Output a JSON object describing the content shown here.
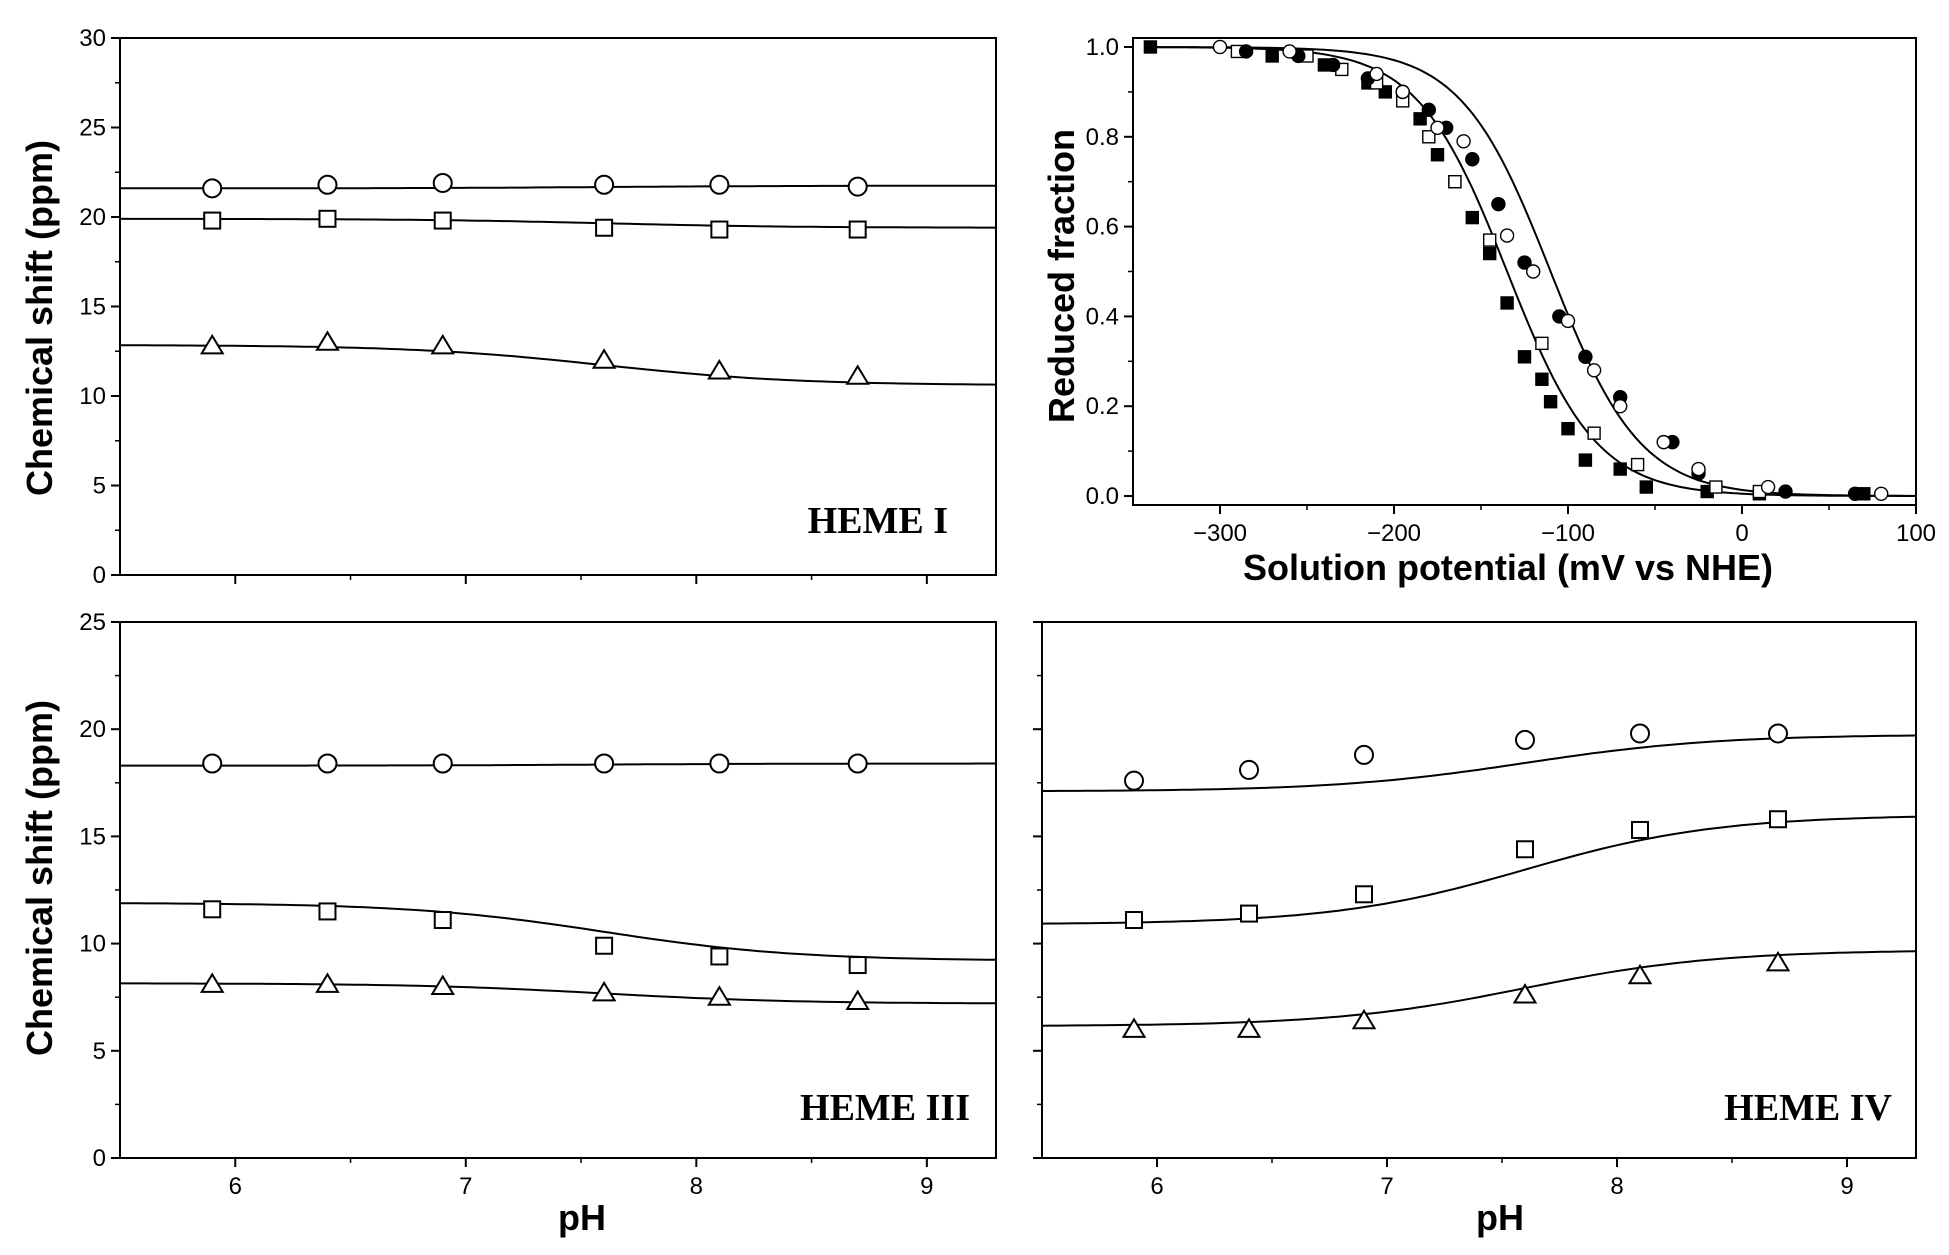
{
  "chart_data": [
    {
      "id": "heme-1",
      "type": "scatter",
      "label": "HEME I",
      "label_color": "#4cb648",
      "xlabel": "",
      "ylabel": "Chemical shift (ppm)",
      "xlim": [
        5.5,
        9.3
      ],
      "ylim": [
        0,
        30
      ],
      "xticks": [],
      "yticks": [
        0,
        5,
        10,
        15,
        20,
        25,
        30
      ],
      "series": [
        {
          "name": "circles",
          "marker": "circle",
          "x": [
            5.9,
            6.4,
            6.9,
            7.6,
            8.1,
            8.7
          ],
          "y": [
            21.6,
            21.8,
            21.9,
            21.8,
            21.8,
            21.7
          ],
          "fit": [
            21.6,
            21.75
          ]
        },
        {
          "name": "squares",
          "marker": "square",
          "x": [
            5.9,
            6.4,
            6.9,
            7.6,
            8.1,
            8.7
          ],
          "y": [
            19.8,
            19.9,
            19.8,
            19.4,
            19.3,
            19.3
          ],
          "fit": [
            19.9,
            19.4
          ]
        },
        {
          "name": "triangles",
          "marker": "triangle",
          "x": [
            5.9,
            6.4,
            6.9,
            7.6,
            8.1,
            8.7
          ],
          "y": [
            12.8,
            13.0,
            12.8,
            12.0,
            11.4,
            11.1
          ],
          "fit": [
            12.85,
            10.6
          ]
        }
      ]
    },
    {
      "id": "redox",
      "type": "scatter",
      "xlabel": "Solution potential (mV vs NHE)",
      "ylabel": "Reduced fraction",
      "xlim": [
        -350,
        100
      ],
      "ylim": [
        -0.02,
        1.02
      ],
      "xticks": [
        -300,
        -200,
        -100,
        0,
        100
      ],
      "xtick_labels": [
        "−300",
        "−200",
        "−100",
        "0",
        "100"
      ],
      "yticks": [
        0,
        0.2,
        0.4,
        0.6,
        0.8,
        1.0
      ],
      "ytick_labels": [
        "0.0",
        "0.2",
        "0.4",
        "0.6",
        "0.8",
        "1.0"
      ],
      "fit_midpoints": [
        -135,
        -110
      ],
      "series": [
        {
          "name": "filled squares",
          "marker": "square-filled",
          "x": [
            -340,
            -270,
            -240,
            -215,
            -205,
            -185,
            -175,
            -165,
            -155,
            -145,
            -135,
            -125,
            -115,
            -110,
            -100,
            -90,
            -70,
            -55,
            -20,
            10,
            70
          ],
          "y": [
            1.0,
            0.98,
            0.96,
            0.92,
            0.9,
            0.84,
            0.76,
            0.7,
            0.62,
            0.54,
            0.43,
            0.31,
            0.26,
            0.21,
            0.15,
            0.08,
            0.06,
            0.02,
            0.01,
            0.005,
            0.005
          ]
        },
        {
          "name": "open squares",
          "marker": "square",
          "x": [
            -290,
            -250,
            -230,
            -210,
            -195,
            -180,
            -165,
            -145,
            -115,
            -85,
            -60,
            -15,
            10
          ],
          "y": [
            0.99,
            0.98,
            0.95,
            0.92,
            0.88,
            0.8,
            0.7,
            0.57,
            0.34,
            0.14,
            0.07,
            0.02,
            0.01
          ]
        },
        {
          "name": "filled circles",
          "marker": "circle-filled",
          "x": [
            -285,
            -255,
            -235,
            -215,
            -195,
            -180,
            -170,
            -155,
            -140,
            -125,
            -105,
            -90,
            -70,
            -40,
            -25,
            25,
            65
          ],
          "y": [
            0.99,
            0.98,
            0.96,
            0.93,
            0.9,
            0.86,
            0.82,
            0.75,
            0.65,
            0.52,
            0.4,
            0.31,
            0.22,
            0.12,
            0.05,
            0.01,
            0.005
          ]
        },
        {
          "name": "open circles",
          "marker": "circle",
          "x": [
            -300,
            -260,
            -210,
            -195,
            -175,
            -160,
            -135,
            -120,
            -100,
            -85,
            -70,
            -45,
            -25,
            15,
            80
          ],
          "y": [
            1.0,
            0.99,
            0.94,
            0.9,
            0.82,
            0.79,
            0.58,
            0.5,
            0.39,
            0.28,
            0.2,
            0.12,
            0.06,
            0.02,
            0.005
          ]
        }
      ]
    },
    {
      "id": "heme-3",
      "type": "scatter",
      "label": "HEME III",
      "label_color": "#f0642d",
      "xlabel": "pH",
      "ylabel": "Chemical shift (ppm)",
      "xlim": [
        5.5,
        9.3
      ],
      "ylim": [
        0,
        25
      ],
      "xticks": [
        6,
        7,
        8,
        9
      ],
      "yticks": [
        0,
        5,
        10,
        15,
        20,
        25
      ],
      "series": [
        {
          "name": "circles",
          "marker": "circle",
          "x": [
            5.9,
            6.4,
            6.9,
            7.6,
            8.1,
            8.7
          ],
          "y": [
            18.4,
            18.4,
            18.4,
            18.4,
            18.4,
            18.4
          ],
          "fit": [
            18.3,
            18.4
          ]
        },
        {
          "name": "squares",
          "marker": "square",
          "x": [
            5.9,
            6.4,
            6.9,
            7.6,
            8.1,
            8.7
          ],
          "y": [
            11.6,
            11.5,
            11.1,
            9.9,
            9.4,
            9.0
          ],
          "fit": [
            11.9,
            9.2
          ]
        },
        {
          "name": "triangles",
          "marker": "triangle",
          "x": [
            5.9,
            6.4,
            6.9,
            7.6,
            8.1,
            8.7
          ],
          "y": [
            8.1,
            8.1,
            8.0,
            7.7,
            7.5,
            7.3
          ],
          "fit": [
            8.15,
            7.2
          ]
        }
      ]
    },
    {
      "id": "heme-4",
      "type": "scatter",
      "label": "HEME IV",
      "label_color": "#1aa7e8",
      "xlabel": "pH",
      "ylabel": "",
      "xlim": [
        5.5,
        9.3
      ],
      "ylim": [
        0,
        25
      ],
      "xticks": [
        6,
        7,
        8,
        9
      ],
      "yticks": [],
      "series": [
        {
          "name": "circles",
          "marker": "circle",
          "x": [
            5.9,
            6.4,
            6.9,
            7.6,
            8.1,
            8.7
          ],
          "y": [
            17.6,
            18.1,
            18.8,
            19.5,
            19.8,
            19.8
          ],
          "fit": [
            17.1,
            19.75
          ]
        },
        {
          "name": "squares",
          "marker": "square",
          "x": [
            5.9,
            6.4,
            6.9,
            7.6,
            8.1,
            8.7
          ],
          "y": [
            11.1,
            11.4,
            12.3,
            14.4,
            15.3,
            15.8
          ],
          "fit": [
            10.9,
            16.0
          ]
        },
        {
          "name": "triangles",
          "marker": "triangle",
          "x": [
            5.9,
            6.4,
            6.9,
            7.6,
            8.1,
            8.7
          ],
          "y": [
            6.0,
            6.0,
            6.4,
            7.6,
            8.5,
            9.1
          ],
          "fit": [
            6.15,
            9.7
          ]
        }
      ]
    }
  ]
}
